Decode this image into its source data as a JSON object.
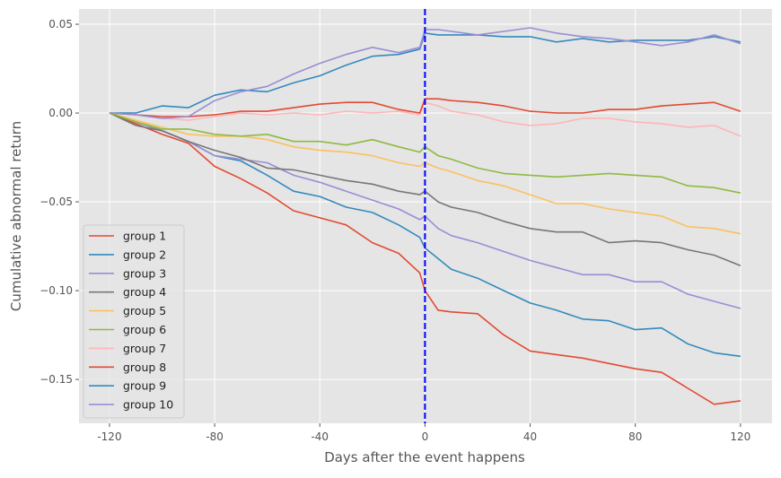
{
  "chart_data": {
    "type": "line",
    "xlabel": "Days after the event happens",
    "ylabel": "Cumulative abnormal return",
    "xlim": [
      -131.6,
      132
    ],
    "ylim": [
      -0.1747,
      0.0586
    ],
    "xticks": [
      -120,
      -80,
      -40,
      0,
      40,
      80,
      120
    ],
    "xtick_labels": [
      "-120",
      "-80",
      "-40",
      "0",
      "40",
      "80",
      "120"
    ],
    "yticks": [
      0.05,
      0.0,
      -0.05,
      -0.1,
      -0.15
    ],
    "ytick_labels": [
      "0.05",
      "0.00",
      "−0.05",
      "−0.10",
      "−0.15"
    ],
    "grid": true,
    "legend_position": "bottom-left",
    "event_line": {
      "x": 0,
      "color": "#0000FF",
      "style": "dashed"
    },
    "x": [
      -120,
      -110,
      -100,
      -90,
      -80,
      -70,
      -60,
      -50,
      -40,
      -30,
      -20,
      -10,
      -2,
      0,
      5,
      10,
      20,
      30,
      40,
      50,
      60,
      70,
      80,
      90,
      100,
      110,
      120
    ],
    "series": [
      {
        "name": "group 1",
        "color": "#E24A33",
        "values": [
          0,
          -0.006,
          -0.012,
          -0.017,
          -0.03,
          -0.037,
          -0.045,
          -0.055,
          -0.059,
          -0.063,
          -0.073,
          -0.079,
          -0.09,
          -0.1,
          -0.111,
          -0.112,
          -0.113,
          -0.125,
          -0.134,
          -0.136,
          -0.138,
          -0.141,
          -0.144,
          -0.146,
          -0.155,
          -0.164,
          -0.162
        ]
      },
      {
        "name": "group 2",
        "color": "#348ABD",
        "values": [
          0,
          -0.005,
          -0.01,
          -0.016,
          -0.024,
          -0.027,
          -0.035,
          -0.044,
          -0.047,
          -0.053,
          -0.056,
          -0.063,
          -0.07,
          -0.076,
          -0.082,
          -0.088,
          -0.093,
          -0.1,
          -0.107,
          -0.111,
          -0.116,
          -0.117,
          -0.122,
          -0.121,
          -0.13,
          -0.135,
          -0.137
        ]
      },
      {
        "name": "group 3",
        "color": "#988ED5",
        "values": [
          0,
          -0.005,
          -0.01,
          -0.016,
          -0.024,
          -0.026,
          -0.028,
          -0.035,
          -0.039,
          -0.044,
          -0.049,
          -0.054,
          -0.06,
          -0.058,
          -0.065,
          -0.069,
          -0.073,
          -0.078,
          -0.083,
          -0.087,
          -0.091,
          -0.091,
          -0.095,
          -0.095,
          -0.102,
          -0.106,
          -0.11
        ]
      },
      {
        "name": "group 4",
        "color": "#777777",
        "values": [
          0,
          -0.007,
          -0.01,
          -0.016,
          -0.021,
          -0.025,
          -0.031,
          -0.032,
          -0.035,
          -0.038,
          -0.04,
          -0.044,
          -0.046,
          -0.044,
          -0.05,
          -0.053,
          -0.056,
          -0.061,
          -0.065,
          -0.067,
          -0.067,
          -0.073,
          -0.072,
          -0.073,
          -0.077,
          -0.08,
          -0.086
        ]
      },
      {
        "name": "group 5",
        "color": "#FBC15E",
        "values": [
          0,
          -0.004,
          -0.008,
          -0.012,
          -0.013,
          -0.013,
          -0.015,
          -0.019,
          -0.021,
          -0.022,
          -0.024,
          -0.028,
          -0.03,
          -0.028,
          -0.031,
          -0.033,
          -0.038,
          -0.041,
          -0.046,
          -0.051,
          -0.051,
          -0.054,
          -0.056,
          -0.058,
          -0.064,
          -0.065,
          -0.068
        ]
      },
      {
        "name": "group 6",
        "color": "#8EBA42",
        "values": [
          0,
          -0.005,
          -0.009,
          -0.009,
          -0.012,
          -0.013,
          -0.012,
          -0.016,
          -0.016,
          -0.018,
          -0.015,
          -0.019,
          -0.022,
          -0.019,
          -0.024,
          -0.026,
          -0.031,
          -0.034,
          -0.035,
          -0.036,
          -0.035,
          -0.034,
          -0.035,
          -0.036,
          -0.041,
          -0.042,
          -0.045
        ]
      },
      {
        "name": "group 7",
        "color": "#FFB5B8",
        "values": [
          0,
          -0.001,
          -0.003,
          -0.004,
          -0.002,
          0.0,
          -0.001,
          0.0,
          -0.001,
          0.001,
          0.0,
          0.001,
          -0.001,
          0.006,
          0.004,
          0.001,
          -0.001,
          -0.005,
          -0.007,
          -0.006,
          -0.003,
          -0.003,
          -0.005,
          -0.006,
          -0.008,
          -0.007,
          -0.013
        ]
      },
      {
        "name": "group 8",
        "color": "#E24A33",
        "values": [
          0,
          -0.001,
          -0.002,
          -0.002,
          -0.001,
          0.001,
          0.001,
          0.003,
          0.005,
          0.006,
          0.006,
          0.002,
          0.0,
          0.008,
          0.008,
          0.007,
          0.006,
          0.004,
          0.001,
          0.0,
          0.0,
          0.002,
          0.002,
          0.004,
          0.005,
          0.006,
          0.001
        ]
      },
      {
        "name": "group 9",
        "color": "#348ABD",
        "values": [
          0,
          0.0,
          0.004,
          0.003,
          0.01,
          0.013,
          0.012,
          0.017,
          0.021,
          0.027,
          0.032,
          0.033,
          0.036,
          0.045,
          0.044,
          0.044,
          0.044,
          0.043,
          0.043,
          0.04,
          0.042,
          0.04,
          0.041,
          0.041,
          0.041,
          0.043,
          0.04
        ]
      },
      {
        "name": "group 10",
        "color": "#988ED5",
        "values": [
          0,
          -0.001,
          -0.003,
          -0.002,
          0.007,
          0.012,
          0.015,
          0.022,
          0.028,
          0.033,
          0.037,
          0.034,
          0.037,
          0.047,
          0.047,
          0.046,
          0.044,
          0.046,
          0.048,
          0.045,
          0.043,
          0.042,
          0.04,
          0.038,
          0.04,
          0.044,
          0.039
        ]
      }
    ]
  }
}
